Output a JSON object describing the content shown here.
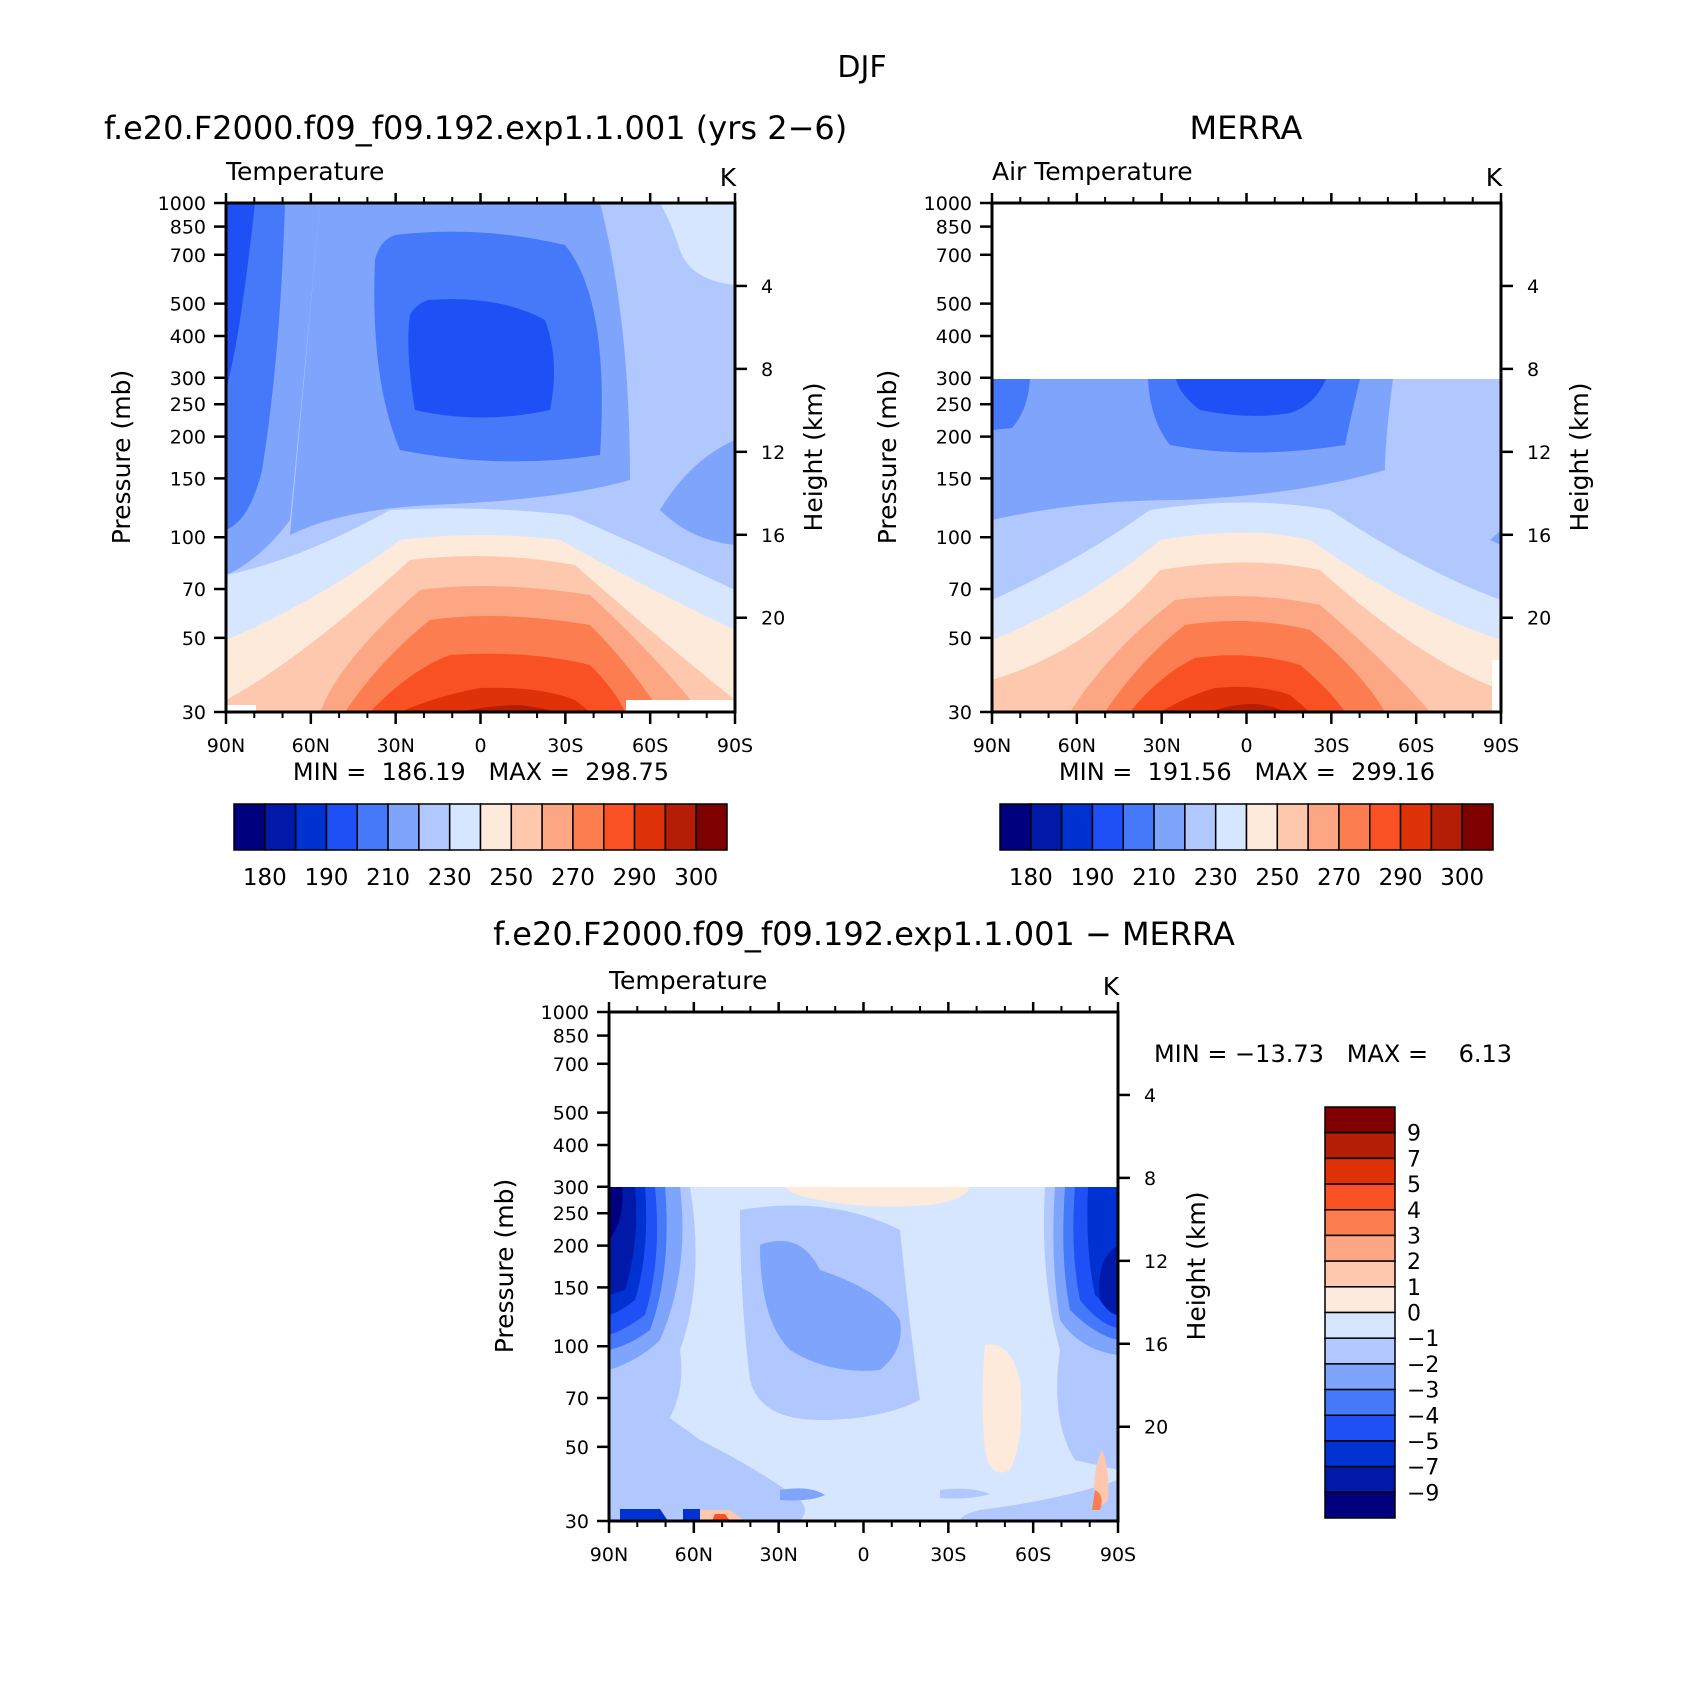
{
  "figure": {
    "title": "DJF",
    "levels": [
      30,
      50,
      70,
      100,
      150,
      200,
      250,
      300,
      400,
      500,
      700,
      850,
      1000
    ],
    "lats": [
      "90N",
      "60N",
      "30N",
      "0",
      "30S",
      "60S",
      "90S"
    ],
    "heights": [
      20,
      16,
      12,
      8,
      4
    ]
  },
  "colors": {
    "abs": [
      "#00007f",
      "#0019a8",
      "#0032d2",
      "#1e50f5",
      "#4678fa",
      "#7ea4fb",
      "#b0c8fd",
      "#d6e6fe",
      "#feeadb",
      "#fdc8ad",
      "#fca683",
      "#fb7d50",
      "#f95124",
      "#e03209",
      "#b51e06",
      "#7f0000"
    ],
    "diff": [
      "#00007f",
      "#0019a8",
      "#0032d2",
      "#1e50f5",
      "#4678fa",
      "#7ea4fb",
      "#b0c8fd",
      "#d6e6fe",
      "#feeadb",
      "#fdc8ad",
      "#fca683",
      "#fb7d50",
      "#f95124",
      "#e03209",
      "#b51e06",
      "#7f0000"
    ]
  },
  "chart_data": [
    {
      "type": "heatmap",
      "id": "model",
      "title": "f.e20.F2000.f09_f09.192.exp1.1.001 (yrs 2−6)",
      "left_label": "Temperature",
      "units": "K",
      "xlabel": "",
      "ylabel": "Pressure (mb)",
      "y2label": "Height (km)",
      "stats": "MIN =  186.19   MAX =  298.75",
      "colorbar": {
        "labels": [
          "180",
          "190",
          "210",
          "230",
          "250",
          "270",
          "290",
          "300"
        ]
      }
    },
    {
      "type": "heatmap",
      "id": "merra",
      "title": "MERRA",
      "left_label": "Air Temperature",
      "units": "K",
      "xlabel": "",
      "ylabel": "Pressure (mb)",
      "y2label": "Height (km)",
      "stats": "MIN =  191.56   MAX =  299.16",
      "colorbar": {
        "labels": [
          "180",
          "190",
          "210",
          "230",
          "250",
          "270",
          "290",
          "300"
        ]
      }
    },
    {
      "type": "heatmap",
      "id": "diff",
      "title": "f.e20.F2000.f09_f09.192.exp1.1.001 − MERRA",
      "left_label": "Temperature",
      "units": "K",
      "xlabel": "",
      "ylabel": "Pressure (mb)",
      "y2label": "Height (km)",
      "stats": "MIN = −13.73   MAX =    6.13",
      "colorbar": {
        "labels": [
          "9",
          "7",
          "5",
          "4",
          "3",
          "2",
          "1",
          "0",
          "−1",
          "−2",
          "−3",
          "−4",
          "−5",
          "−7",
          "−9"
        ]
      }
    }
  ]
}
